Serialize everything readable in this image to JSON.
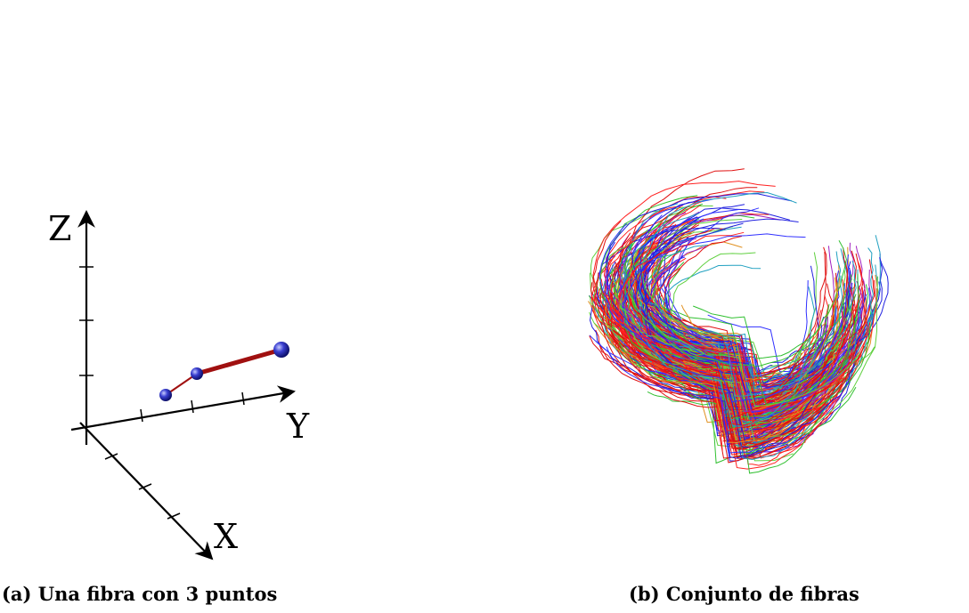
{
  "panel_a": {
    "axis_labels": {
      "z": "Z",
      "y": "Y",
      "x": "X"
    },
    "caption": "(a) Una fibra con 3 puntos"
  },
  "panel_b": {
    "caption": "(b) Conjunto de fibras"
  }
}
